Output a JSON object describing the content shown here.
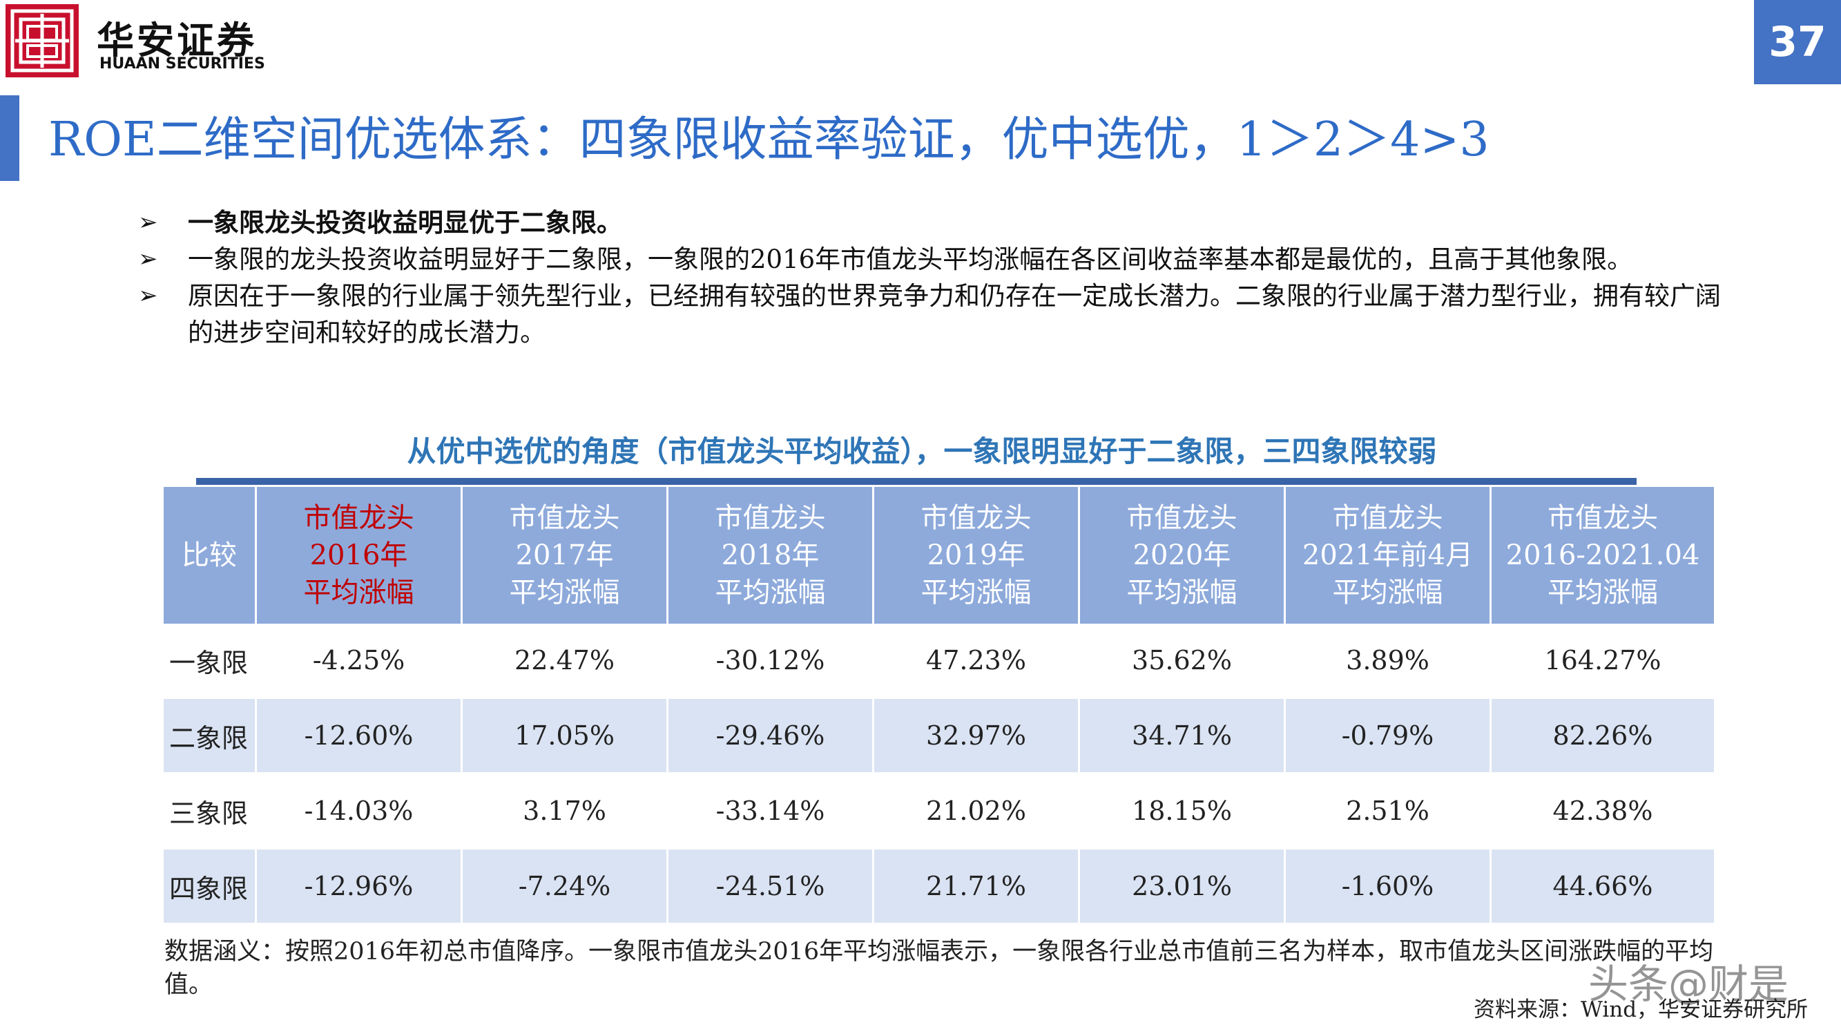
{
  "header": {
    "logo_cn": "华安证券",
    "logo_en": "HUAAN SECURITIES",
    "page_number": "37",
    "title": "ROE二维空间优选体系：四象限收益率验证，优中选优，1＞2＞4>3"
  },
  "bullets": [
    {
      "text": "一象限龙头投资收益明显优于二象限。"
    },
    {
      "text": "一象限的龙头投资收益明显好于二象限，一象限的2016年市值龙头平均涨幅在各区间收益率基本都是最优的，且高于其他象限。"
    },
    {
      "text": "原因在于一象限的行业属于领先型行业，已经拥有较强的世界竞争力和仍存在一定成长潜力。二象限的行业属于潜力型行业，拥有较广阔的进步空间和较好的成长潜力。"
    }
  ],
  "table": {
    "heading": "从优中选优的角度（市值龙头平均收益），一象限明显好于二象限，三四象限较弱",
    "corner": "比较",
    "columns": [
      {
        "l1": "市值龙头",
        "l2": "2016年",
        "l3": "平均涨幅"
      },
      {
        "l1": "市值龙头",
        "l2": "2017年",
        "l3": "平均涨幅"
      },
      {
        "l1": "市值龙头",
        "l2": "2018年",
        "l3": "平均涨幅"
      },
      {
        "l1": "市值龙头",
        "l2": "2019年",
        "l3": "平均涨幅"
      },
      {
        "l1": "市值龙头",
        "l2": "2020年",
        "l3": "平均涨幅"
      },
      {
        "l1": "市值龙头",
        "l2": "2021年前4月",
        "l3": "平均涨幅"
      },
      {
        "l1": "市值龙头",
        "l2": "2016-2021.04",
        "l3": "平均涨幅"
      }
    ],
    "rows": [
      {
        "label": "一象限",
        "values": [
          "-4.25%",
          "22.47%",
          "-30.12%",
          "47.23%",
          "35.62%",
          "3.89%",
          "164.27%"
        ]
      },
      {
        "label": "二象限",
        "values": [
          "-12.60%",
          "17.05%",
          "-29.46%",
          "32.97%",
          "34.71%",
          "-0.79%",
          "82.26%"
        ]
      },
      {
        "label": "三象限",
        "values": [
          "-14.03%",
          "3.17%",
          "-33.14%",
          "21.02%",
          "18.15%",
          "2.51%",
          "42.38%"
        ]
      },
      {
        "label": "四象限",
        "values": [
          "-12.96%",
          "-7.24%",
          "-24.51%",
          "21.71%",
          "23.01%",
          "-1.60%",
          "44.66%"
        ]
      }
    ],
    "highlight_color": "#c00000",
    "header_bg": "#8eaadb",
    "stripe_bg": "#dae3f3"
  },
  "note": "数据涵义：按照2016年初总市值降序。一象限市值龙头2016年平均涨幅表示，一象限各行业总市值前三名为样本，取市值龙头区间涨跌幅的平均值。",
  "source": "资料来源：Wind，华安证券研究所",
  "watermark": "头条@财是"
}
